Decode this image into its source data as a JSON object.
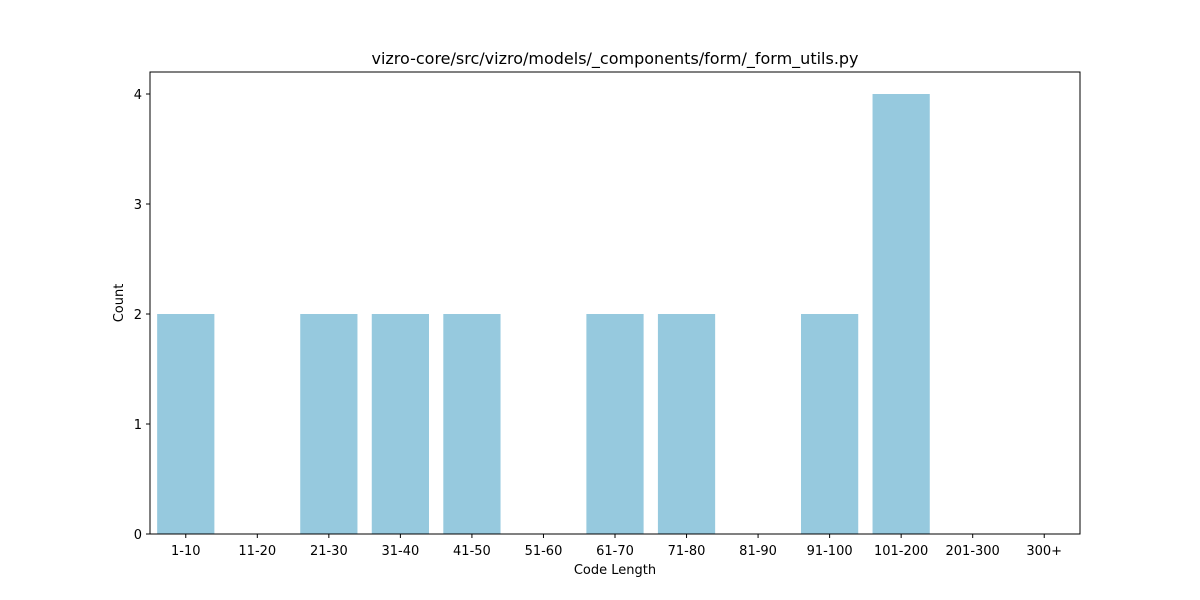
{
  "chart_data": {
    "type": "bar",
    "title": "vizro-core/src/vizro/models/_components/form/_form_utils.py",
    "xlabel": "Code Length",
    "ylabel": "Count",
    "categories": [
      "1-10",
      "11-20",
      "21-30",
      "31-40",
      "41-50",
      "51-60",
      "61-70",
      "71-80",
      "81-90",
      "91-100",
      "101-200",
      "201-300",
      "300+"
    ],
    "values": [
      2,
      0,
      2,
      2,
      2,
      0,
      2,
      2,
      0,
      2,
      4,
      0,
      0
    ],
    "ylim": [
      0,
      4.2
    ],
    "yticks": [
      0,
      1,
      2,
      3,
      4
    ],
    "bar_color": "#96c9de",
    "grid": false,
    "legend": "none"
  }
}
